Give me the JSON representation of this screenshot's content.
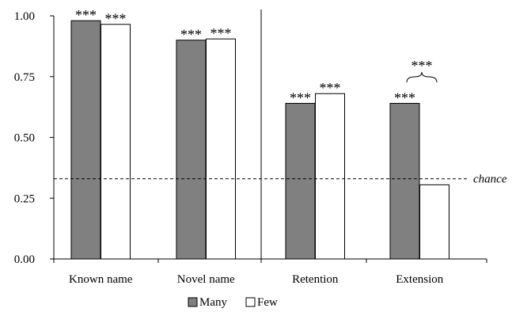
{
  "chart_data": {
    "type": "bar",
    "categories": [
      "Known name",
      "Novel name",
      "Retention",
      "Extension"
    ],
    "series": [
      {
        "name": "Many",
        "color": "#808080",
        "values": [
          0.98,
          0.9,
          0.64,
          0.64
        ]
      },
      {
        "name": "Few",
        "color": "#ffffff",
        "values": [
          0.965,
          0.905,
          0.68,
          0.305
        ]
      }
    ],
    "ylim": [
      0,
      1
    ],
    "yticks": [
      "0.00",
      "0.25",
      "0.50",
      "0.75",
      "1.00"
    ],
    "grid": false,
    "legend": "bottom",
    "reference_line": {
      "value": 0.33,
      "label": "chance",
      "style": "dashed"
    },
    "significance": {
      "bar_labels": [
        [
          "***",
          "***"
        ],
        [
          "***",
          "***"
        ],
        [
          "***",
          "***"
        ],
        [
          "***",
          ""
        ]
      ],
      "comparison_label": "***",
      "comparison_category": "Extension"
    },
    "divider_after_category": "Novel name"
  }
}
